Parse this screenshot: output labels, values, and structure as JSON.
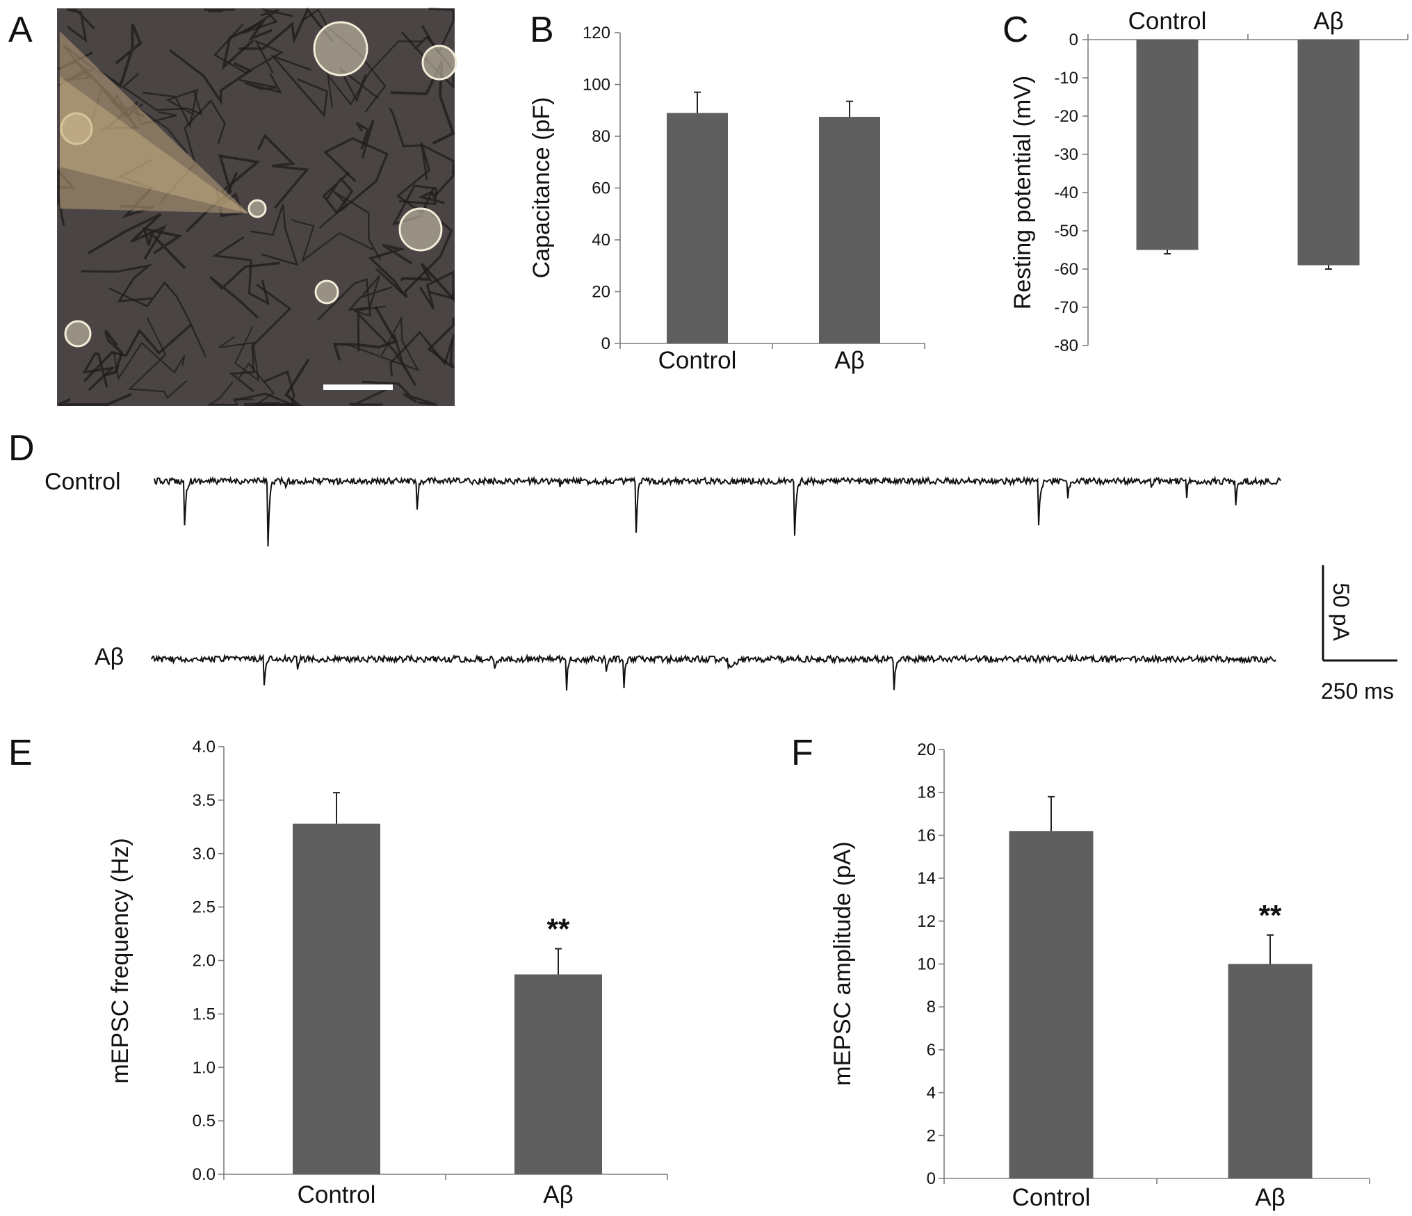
{
  "panels": {
    "A": "A",
    "B": "B",
    "C": "C",
    "D": "D",
    "E": "E",
    "F": "F"
  },
  "traces": {
    "control_label": "Control",
    "abeta_label": "Aβ",
    "scale_y_label": "50 pA",
    "scale_x_label": "250 ms"
  },
  "colors": {
    "bar": "#5f5f5f",
    "axis": "#7f7f7f",
    "trace": "#111111",
    "micrograph_bg": "#4a4444"
  },
  "chart_data": [
    {
      "id": "B",
      "type": "bar",
      "categories": [
        "Control",
        "Aβ"
      ],
      "values": [
        89,
        87.5
      ],
      "errors": [
        8,
        6
      ],
      "ylabel": "Capacitance (pF)",
      "ylim": [
        0,
        120
      ],
      "yticks": [
        0,
        20,
        40,
        60,
        80,
        100,
        120
      ],
      "ytick_labels": [
        "0",
        "20",
        "40",
        "60",
        "80",
        "100",
        "120"
      ],
      "significance": [
        "",
        ""
      ]
    },
    {
      "id": "C",
      "type": "bar",
      "categories": [
        "Control",
        "Aβ"
      ],
      "values": [
        -55,
        -59
      ],
      "errors": [
        1,
        1
      ],
      "ylabel": "Resting potential (mV)",
      "ylim": [
        -80,
        0
      ],
      "yticks": [
        0,
        -10,
        -20,
        -30,
        -40,
        -50,
        -60,
        -70,
        -80
      ],
      "ytick_labels": [
        "0",
        "-10",
        "-20",
        "-30",
        "-40",
        "-50",
        "-60",
        "-70",
        "-80"
      ],
      "category_axis": "top",
      "significance": [
        "",
        ""
      ]
    },
    {
      "id": "E",
      "type": "bar",
      "categories": [
        "Control",
        "Aβ"
      ],
      "values": [
        3.28,
        1.87
      ],
      "errors": [
        0.29,
        0.24
      ],
      "ylabel": "mEPSC frequency (Hz)",
      "ylim": [
        0,
        4
      ],
      "yticks": [
        0,
        0.5,
        1,
        1.5,
        2,
        2.5,
        3,
        3.5,
        4
      ],
      "ytick_labels": [
        "0.0",
        "0.5",
        "1.0",
        "1.5",
        "2.0",
        "2.5",
        "3.0",
        "3.5",
        "4.0"
      ],
      "significance": [
        "",
        "**"
      ]
    },
    {
      "id": "F",
      "type": "bar",
      "categories": [
        "Control",
        "Aβ"
      ],
      "values": [
        16.2,
        10
      ],
      "errors": [
        1.6,
        1.35
      ],
      "ylabel": "mEPSC amplitude (pA)",
      "ylim": [
        0,
        20
      ],
      "yticks": [
        0,
        2,
        4,
        6,
        8,
        10,
        12,
        14,
        16,
        18,
        20
      ],
      "ytick_labels": [
        "0",
        "2",
        "4",
        "6",
        "8",
        "10",
        "12",
        "14",
        "16",
        "18",
        "20"
      ],
      "significance": [
        "",
        "**"
      ]
    }
  ]
}
